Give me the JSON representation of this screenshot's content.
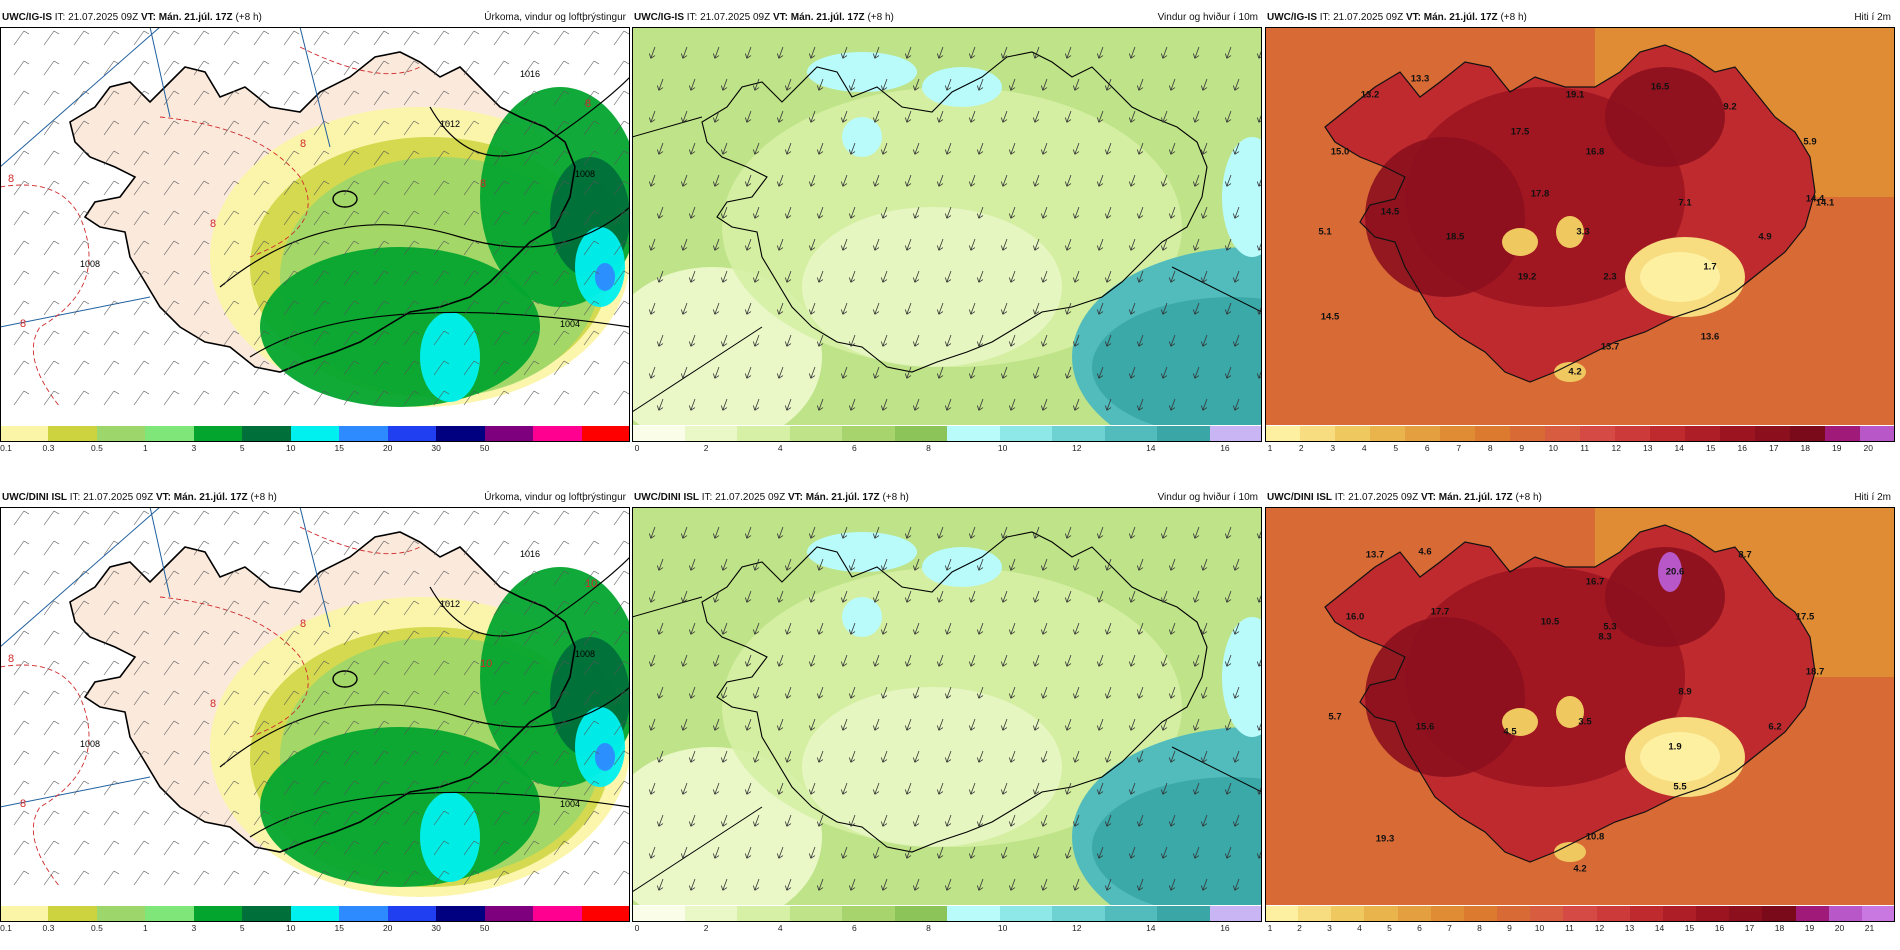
{
  "rows": [
    {
      "model": "UWC/IG-IS",
      "panels": [
        {
          "type": "precip",
          "model": "UWC/IG-IS",
          "it_label": "IT:",
          "it_value": "21.07.2025 09Z",
          "vt_label": "VT:",
          "vt_value": "Mán. 21.júl. 17Z",
          "lead": "(+8 h)",
          "title": "Úrkoma, vindur og loftþrýstingur",
          "legend_colors": [
            "#fbf5a8",
            "#cdd33e",
            "#9dd66a",
            "#7fe67a",
            "#04a52f",
            "#006f3a",
            "#00f0f0",
            "#2d8bff",
            "#1f3ff0",
            "#000080",
            "#7f007f",
            "#ff0090",
            "#ff0000"
          ],
          "legend_ticks": [
            "0.1",
            "0.3",
            "0.5",
            "1",
            "3",
            "5",
            "10",
            "15",
            "20",
            "30",
            "50"
          ],
          "isobars": [
            "1004",
            "1008",
            "1008",
            "1012",
            "1016"
          ],
          "red_labels": [
            "8",
            "8",
            "8",
            "8",
            "8",
            "8"
          ]
        },
        {
          "type": "wind",
          "model": "UWC/IG-IS",
          "it_label": "IT:",
          "it_value": "21.07.2025 09Z",
          "vt_label": "VT:",
          "vt_value": "Mán. 21.júl. 17Z",
          "lead": "(+8 h)",
          "title": "Vindur og hviður í 10m",
          "legend_colors": [
            "#fafde8",
            "#eaf8c8",
            "#d6f0a5",
            "#bfe388",
            "#a7d46d",
            "#8cc45a",
            "#b9fbfb",
            "#8ee8e8",
            "#6ed2d2",
            "#52bcbc",
            "#3aa6a6",
            "#c9b4f4"
          ],
          "legend_ticks": [
            "0",
            "2",
            "4",
            "6",
            "8",
            "10",
            "12",
            "14",
            "16"
          ]
        },
        {
          "type": "temp",
          "model": "UWC/IG-IS",
          "it_label": "IT:",
          "it_value": "21.07.2025 09Z",
          "vt_label": "VT:",
          "vt_value": "Mán. 21.júl. 17Z",
          "lead": "(+8 h)",
          "title": "Hiti í 2m",
          "legend_colors": [
            "#fdf0a0",
            "#f7dc80",
            "#f0c860",
            "#e9b44c",
            "#e4a040",
            "#e08c35",
            "#dc7a30",
            "#d86a35",
            "#d85c40",
            "#d64a45",
            "#cc3a3a",
            "#be2a2e",
            "#ae1e26",
            "#9c1420",
            "#8c0f1e",
            "#7a0a1a",
            "#a01a7a",
            "#b858c8"
          ],
          "legend_ticks": [
            "1",
            "2",
            "3",
            "4",
            "5",
            "6",
            "7",
            "8",
            "9",
            "10",
            "11",
            "12",
            "13",
            "14",
            "15",
            "16",
            "17",
            "18",
            "19",
            "20"
          ],
          "labels": [
            "13.2",
            "13.3",
            "19.1",
            "16.5",
            "9.2",
            "15.0",
            "17.5",
            "16.8",
            "5.9",
            "14.4",
            "17.8",
            "7.1",
            "14.1",
            "14.5",
            "3.3",
            "5.1",
            "18.5",
            "19.2",
            "4.9",
            "2.3",
            "1.7",
            "14.5",
            "13.7",
            "13.6",
            "4.2"
          ]
        }
      ]
    },
    {
      "model": "UWC/DINI ISL",
      "panels": [
        {
          "type": "precip",
          "model": "UWC/DINI ISL",
          "it_label": "IT:",
          "it_value": "21.07.2025 09Z",
          "vt_label": "VT:",
          "vt_value": "Mán. 21.júl. 17Z",
          "lead": "(+8 h)",
          "title": "Úrkoma, vindur og loftþrýstingur",
          "legend_colors": [
            "#fbf5a8",
            "#cdd33e",
            "#9dd66a",
            "#7fe67a",
            "#04a52f",
            "#006f3a",
            "#00f0f0",
            "#2d8bff",
            "#1f3ff0",
            "#000080",
            "#7f007f",
            "#ff0090",
            "#ff0000"
          ],
          "legend_ticks": [
            "0.1",
            "0.3",
            "0.5",
            "1",
            "3",
            "5",
            "10",
            "15",
            "20",
            "30",
            "50"
          ],
          "isobars": [
            "1004",
            "1008",
            "1008",
            "1012",
            "1016"
          ],
          "red_labels": [
            "8",
            "8",
            "8",
            "10",
            "10",
            "8"
          ]
        },
        {
          "type": "wind",
          "model": "UWC/DINI ISL",
          "it_label": "IT:",
          "it_value": "21.07.2025 09Z",
          "vt_label": "VT:",
          "vt_value": "Mán. 21.júl. 17Z",
          "lead": "(+8 h)",
          "title": "Vindur og hviður í 10m",
          "legend_colors": [
            "#fafde8",
            "#eaf8c8",
            "#d6f0a5",
            "#bfe388",
            "#a7d46d",
            "#8cc45a",
            "#b9fbfb",
            "#8ee8e8",
            "#6ed2d2",
            "#52bcbc",
            "#3aa6a6",
            "#c9b4f4"
          ],
          "legend_ticks": [
            "0",
            "2",
            "4",
            "6",
            "8",
            "10",
            "12",
            "14",
            "16"
          ]
        },
        {
          "type": "temp",
          "model": "UWC/DINI ISL",
          "it_label": "IT:",
          "it_value": "21.07.2025 09Z",
          "vt_label": "VT:",
          "vt_value": "Mán. 21.júl. 17Z",
          "lead": "(+8 h)",
          "title": "Hiti í 2m",
          "legend_colors": [
            "#fdf0a0",
            "#f7dc80",
            "#f0c860",
            "#e9b44c",
            "#e4a040",
            "#e08c35",
            "#dc7a30",
            "#d86a35",
            "#d85c40",
            "#d64a45",
            "#cc3a3a",
            "#be2a2e",
            "#ae1e26",
            "#9c1420",
            "#8c0f1e",
            "#7a0a1a",
            "#a01a7a",
            "#b858c8",
            "#c878e0"
          ],
          "legend_ticks": [
            "1",
            "2",
            "3",
            "4",
            "5",
            "6",
            "7",
            "8",
            "9",
            "10",
            "11",
            "12",
            "13",
            "14",
            "15",
            "16",
            "17",
            "18",
            "19",
            "20",
            "21"
          ],
          "labels": [
            "13.7",
            "4.6",
            "16.7",
            "20.6",
            "8.7",
            "16.0",
            "17.7",
            "10.5",
            "5.3",
            "17.5",
            "18.7",
            "8.3",
            "8.9",
            "5.7",
            "15.6",
            "4.5",
            "3.5",
            "6.2",
            "1.9",
            "5.5",
            "10.8",
            "19.3",
            "4.2"
          ]
        }
      ]
    }
  ]
}
